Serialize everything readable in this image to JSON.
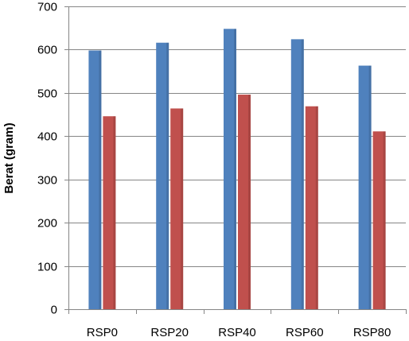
{
  "chart_data": {
    "type": "bar",
    "categories": [
      "RSP0",
      "RSP20",
      "RSP40",
      "RSP60",
      "RSP80"
    ],
    "series": [
      {
        "values": [
          598,
          616,
          648,
          624,
          563
        ],
        "color": "#4F81BD"
      },
      {
        "values": [
          446,
          464,
          496,
          469,
          411
        ],
        "color": "#C0504D"
      }
    ],
    "ylabel": "Berat (gram)",
    "ylim": [
      0,
      700
    ],
    "yticks": [
      0,
      100,
      200,
      300,
      400,
      500,
      600,
      700
    ],
    "grid": true,
    "legend": "none"
  }
}
